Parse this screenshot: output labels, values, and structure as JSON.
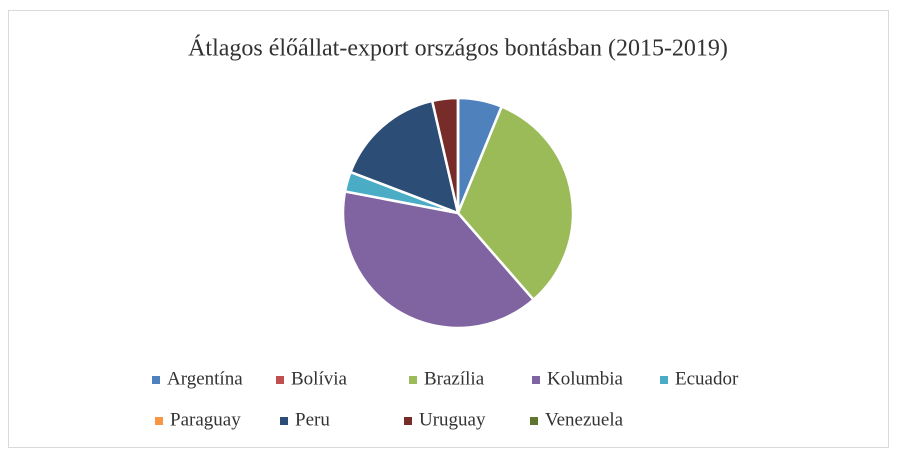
{
  "chart_data": {
    "type": "pie",
    "title": "Átlagos élőállat-export országos bontásban (2015-2019)",
    "categories": [
      "Argentína",
      "Bolívia",
      "Brazília",
      "Kolumbia",
      "Ecuador",
      "Paraguay",
      "Peru",
      "Uruguay",
      "Venezuela"
    ],
    "values": [
      6.2,
      0,
      32.4,
      39.4,
      2.8,
      0,
      15.6,
      3.6,
      0
    ],
    "colors": [
      "#4f81bd",
      "#c0504d",
      "#9bbb59",
      "#8064a2",
      "#4bacc6",
      "#f79646",
      "#2c4d75",
      "#772c2a",
      "#5f7530"
    ],
    "legend": "bottom"
  }
}
